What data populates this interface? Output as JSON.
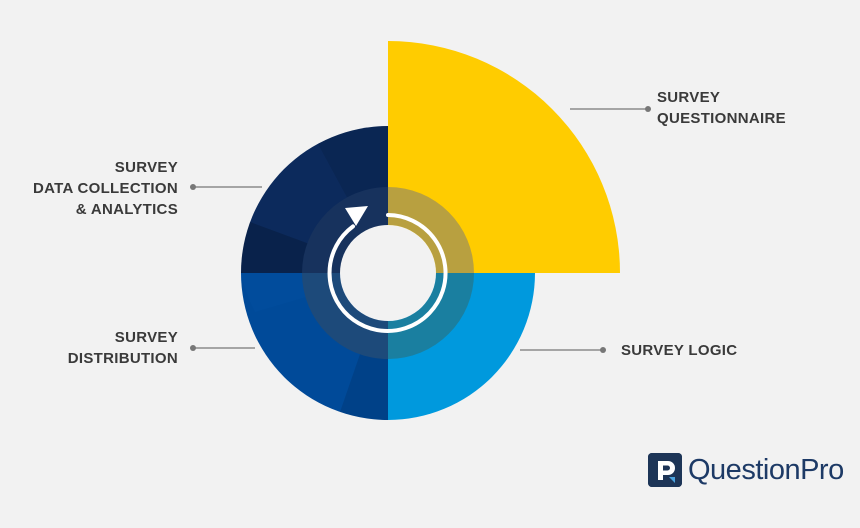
{
  "diagram": {
    "segments": [
      {
        "id": "questionnaire",
        "lines": [
          "SURVEY",
          "QUESTIONNAIRE"
        ],
        "color": "#ffcc00"
      },
      {
        "id": "logic",
        "lines": [
          "SURVEY LOGIC"
        ],
        "color": "#0099dd"
      },
      {
        "id": "distribution",
        "lines": [
          "SURVEY",
          "DISTRIBUTION"
        ],
        "color": "#004a99"
      },
      {
        "id": "collection",
        "lines": [
          "SURVEY",
          "DATA COLLECTION",
          "& ANALYTICS"
        ],
        "color": "#0c2a5c"
      }
    ],
    "connector_color": "#777777"
  },
  "brand": {
    "name": "QuestionPro",
    "logo_icon": "questionpro-logo-icon"
  }
}
